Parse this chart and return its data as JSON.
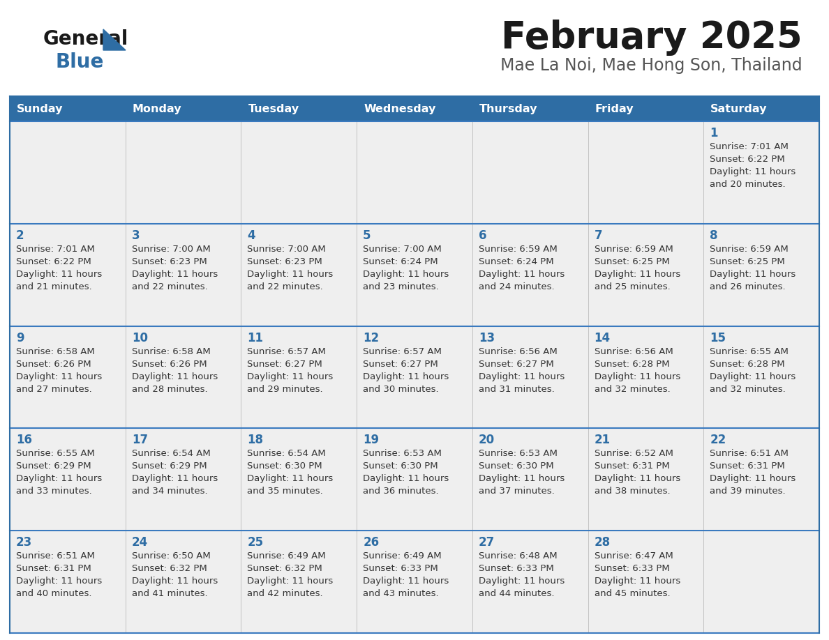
{
  "title": "February 2025",
  "subtitle": "Mae La Noi, Mae Hong Son, Thailand",
  "days_of_week": [
    "Sunday",
    "Monday",
    "Tuesday",
    "Wednesday",
    "Thursday",
    "Friday",
    "Saturday"
  ],
  "header_bg": "#2e6da4",
  "header_text": "#ffffff",
  "cell_bg": "#efefef",
  "border_color": "#2e6da4",
  "row_border_color": "#3a7abf",
  "title_color": "#1a1a1a",
  "subtitle_color": "#555555",
  "day_number_color": "#2e6da4",
  "cell_text_color": "#333333",
  "logo_general_color": "#1a1a1a",
  "logo_blue_color": "#2e6da4",
  "calendar_data": [
    [
      null,
      null,
      null,
      null,
      null,
      null,
      {
        "day": 1,
        "sunrise": "7:01 AM",
        "sunset": "6:22 PM",
        "daylight_line1": "Daylight: 11 hours",
        "daylight_line2": "and 20 minutes."
      }
    ],
    [
      {
        "day": 2,
        "sunrise": "7:01 AM",
        "sunset": "6:22 PM",
        "daylight_line1": "Daylight: 11 hours",
        "daylight_line2": "and 21 minutes."
      },
      {
        "day": 3,
        "sunrise": "7:00 AM",
        "sunset": "6:23 PM",
        "daylight_line1": "Daylight: 11 hours",
        "daylight_line2": "and 22 minutes."
      },
      {
        "day": 4,
        "sunrise": "7:00 AM",
        "sunset": "6:23 PM",
        "daylight_line1": "Daylight: 11 hours",
        "daylight_line2": "and 22 minutes."
      },
      {
        "day": 5,
        "sunrise": "7:00 AM",
        "sunset": "6:24 PM",
        "daylight_line1": "Daylight: 11 hours",
        "daylight_line2": "and 23 minutes."
      },
      {
        "day": 6,
        "sunrise": "6:59 AM",
        "sunset": "6:24 PM",
        "daylight_line1": "Daylight: 11 hours",
        "daylight_line2": "and 24 minutes."
      },
      {
        "day": 7,
        "sunrise": "6:59 AM",
        "sunset": "6:25 PM",
        "daylight_line1": "Daylight: 11 hours",
        "daylight_line2": "and 25 minutes."
      },
      {
        "day": 8,
        "sunrise": "6:59 AM",
        "sunset": "6:25 PM",
        "daylight_line1": "Daylight: 11 hours",
        "daylight_line2": "and 26 minutes."
      }
    ],
    [
      {
        "day": 9,
        "sunrise": "6:58 AM",
        "sunset": "6:26 PM",
        "daylight_line1": "Daylight: 11 hours",
        "daylight_line2": "and 27 minutes."
      },
      {
        "day": 10,
        "sunrise": "6:58 AM",
        "sunset": "6:26 PM",
        "daylight_line1": "Daylight: 11 hours",
        "daylight_line2": "and 28 minutes."
      },
      {
        "day": 11,
        "sunrise": "6:57 AM",
        "sunset": "6:27 PM",
        "daylight_line1": "Daylight: 11 hours",
        "daylight_line2": "and 29 minutes."
      },
      {
        "day": 12,
        "sunrise": "6:57 AM",
        "sunset": "6:27 PM",
        "daylight_line1": "Daylight: 11 hours",
        "daylight_line2": "and 30 minutes."
      },
      {
        "day": 13,
        "sunrise": "6:56 AM",
        "sunset": "6:27 PM",
        "daylight_line1": "Daylight: 11 hours",
        "daylight_line2": "and 31 minutes."
      },
      {
        "day": 14,
        "sunrise": "6:56 AM",
        "sunset": "6:28 PM",
        "daylight_line1": "Daylight: 11 hours",
        "daylight_line2": "and 32 minutes."
      },
      {
        "day": 15,
        "sunrise": "6:55 AM",
        "sunset": "6:28 PM",
        "daylight_line1": "Daylight: 11 hours",
        "daylight_line2": "and 32 minutes."
      }
    ],
    [
      {
        "day": 16,
        "sunrise": "6:55 AM",
        "sunset": "6:29 PM",
        "daylight_line1": "Daylight: 11 hours",
        "daylight_line2": "and 33 minutes."
      },
      {
        "day": 17,
        "sunrise": "6:54 AM",
        "sunset": "6:29 PM",
        "daylight_line1": "Daylight: 11 hours",
        "daylight_line2": "and 34 minutes."
      },
      {
        "day": 18,
        "sunrise": "6:54 AM",
        "sunset": "6:30 PM",
        "daylight_line1": "Daylight: 11 hours",
        "daylight_line2": "and 35 minutes."
      },
      {
        "day": 19,
        "sunrise": "6:53 AM",
        "sunset": "6:30 PM",
        "daylight_line1": "Daylight: 11 hours",
        "daylight_line2": "and 36 minutes."
      },
      {
        "day": 20,
        "sunrise": "6:53 AM",
        "sunset": "6:30 PM",
        "daylight_line1": "Daylight: 11 hours",
        "daylight_line2": "and 37 minutes."
      },
      {
        "day": 21,
        "sunrise": "6:52 AM",
        "sunset": "6:31 PM",
        "daylight_line1": "Daylight: 11 hours",
        "daylight_line2": "and 38 minutes."
      },
      {
        "day": 22,
        "sunrise": "6:51 AM",
        "sunset": "6:31 PM",
        "daylight_line1": "Daylight: 11 hours",
        "daylight_line2": "and 39 minutes."
      }
    ],
    [
      {
        "day": 23,
        "sunrise": "6:51 AM",
        "sunset": "6:31 PM",
        "daylight_line1": "Daylight: 11 hours",
        "daylight_line2": "and 40 minutes."
      },
      {
        "day": 24,
        "sunrise": "6:50 AM",
        "sunset": "6:32 PM",
        "daylight_line1": "Daylight: 11 hours",
        "daylight_line2": "and 41 minutes."
      },
      {
        "day": 25,
        "sunrise": "6:49 AM",
        "sunset": "6:32 PM",
        "daylight_line1": "Daylight: 11 hours",
        "daylight_line2": "and 42 minutes."
      },
      {
        "day": 26,
        "sunrise": "6:49 AM",
        "sunset": "6:33 PM",
        "daylight_line1": "Daylight: 11 hours",
        "daylight_line2": "and 43 minutes."
      },
      {
        "day": 27,
        "sunrise": "6:48 AM",
        "sunset": "6:33 PM",
        "daylight_line1": "Daylight: 11 hours",
        "daylight_line2": "and 44 minutes."
      },
      {
        "day": 28,
        "sunrise": "6:47 AM",
        "sunset": "6:33 PM",
        "daylight_line1": "Daylight: 11 hours",
        "daylight_line2": "and 45 minutes."
      },
      null
    ]
  ]
}
